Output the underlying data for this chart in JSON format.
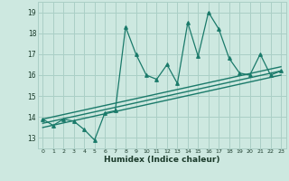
{
  "title": "",
  "xlabel": "Humidex (Indice chaleur)",
  "ylabel": "",
  "xlim": [
    -0.5,
    23.5
  ],
  "ylim": [
    12.5,
    19.5
  ],
  "xticks": [
    0,
    1,
    2,
    3,
    4,
    5,
    6,
    7,
    8,
    9,
    10,
    11,
    12,
    13,
    14,
    15,
    16,
    17,
    18,
    19,
    20,
    21,
    22,
    23
  ],
  "yticks": [
    13,
    14,
    15,
    16,
    17,
    18,
    19
  ],
  "bg_color": "#cde8e0",
  "line_color": "#1a7a6a",
  "grid_color": "#aacfc6",
  "scatter_data_x": [
    0,
    1,
    2,
    3,
    4,
    5,
    6,
    7,
    8,
    9,
    10,
    11,
    12,
    13,
    14,
    15,
    16,
    17,
    18,
    19,
    20,
    21,
    22,
    23
  ],
  "scatter_data_y": [
    13.9,
    13.6,
    13.9,
    13.8,
    13.4,
    12.9,
    14.2,
    14.3,
    18.3,
    17.0,
    16.0,
    15.8,
    16.5,
    15.6,
    18.5,
    16.9,
    19.0,
    18.2,
    16.8,
    16.1,
    16.0,
    17.0,
    16.0,
    16.2
  ],
  "reg_lines": [
    {
      "x_start": 0,
      "x_end": 23,
      "y_start": 13.9,
      "y_end": 16.4
    },
    {
      "x_start": 0,
      "x_end": 23,
      "y_start": 13.7,
      "y_end": 16.2
    },
    {
      "x_start": 0,
      "x_end": 23,
      "y_start": 13.5,
      "y_end": 16.0
    }
  ]
}
